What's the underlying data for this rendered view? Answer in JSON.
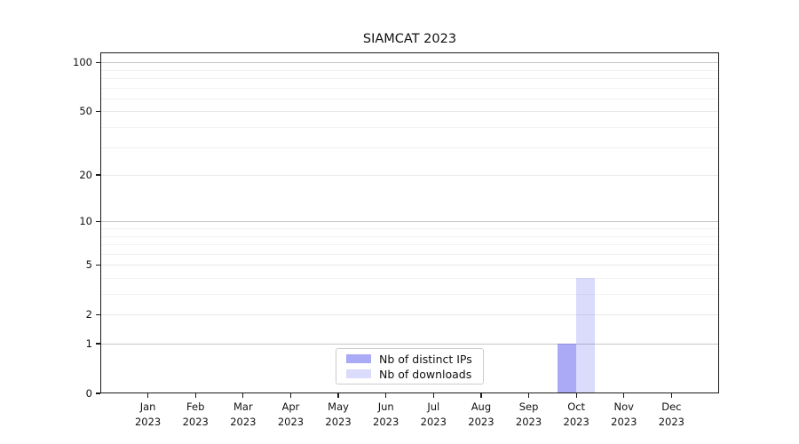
{
  "chart_data": {
    "type": "bar",
    "title": "SIAMCAT 2023",
    "categories": [
      "Jan 2023",
      "Feb 2023",
      "Mar 2023",
      "Apr 2023",
      "May 2023",
      "Jun 2023",
      "Jul 2023",
      "Aug 2023",
      "Sep 2023",
      "Oct 2023",
      "Nov 2023",
      "Dec 2023"
    ],
    "x_tick_labels": [
      {
        "month": "Jan",
        "year": "2023"
      },
      {
        "month": "Feb",
        "year": "2023"
      },
      {
        "month": "Mar",
        "year": "2023"
      },
      {
        "month": "Apr",
        "year": "2023"
      },
      {
        "month": "May",
        "year": "2023"
      },
      {
        "month": "Jun",
        "year": "2023"
      },
      {
        "month": "Jul",
        "year": "2023"
      },
      {
        "month": "Aug",
        "year": "2023"
      },
      {
        "month": "Sep",
        "year": "2023"
      },
      {
        "month": "Oct",
        "year": "2023"
      },
      {
        "month": "Nov",
        "year": "2023"
      },
      {
        "month": "Dec",
        "year": "2023"
      }
    ],
    "series": [
      {
        "name": "Nb of distinct IPs",
        "color": "rgba(85,85,240,0.5)",
        "values": [
          0,
          0,
          0,
          0,
          0,
          0,
          0,
          0,
          0,
          1,
          0,
          0
        ]
      },
      {
        "name": "Nb of downloads",
        "color": "rgba(85,85,240,0.21)",
        "values": [
          0,
          0,
          0,
          0,
          0,
          0,
          0,
          0,
          0,
          4,
          0,
          0
        ]
      }
    ],
    "yscale": "symlog (position = ln(1+v))",
    "ylim": [
      0,
      115
    ],
    "ymax": 115,
    "yticks": [
      0,
      1,
      2,
      5,
      10,
      20,
      50,
      100
    ],
    "decade_gridlines": [
      1,
      10,
      100
    ],
    "sub_gridlines": [
      2,
      5,
      20,
      50
    ],
    "minor_gridlines": [
      3,
      4,
      6,
      7,
      8,
      9,
      30,
      40,
      60,
      70,
      80,
      90
    ],
    "grid": true,
    "legend_position": "lower center"
  },
  "colors": {
    "decade_grid": "#c6c6c6",
    "sub_grid": "#e9e9e9",
    "minor_grid": "#f2f2f2",
    "axis": "#1a1a1a",
    "text": "#111111",
    "legend_border": "#cccccc"
  }
}
